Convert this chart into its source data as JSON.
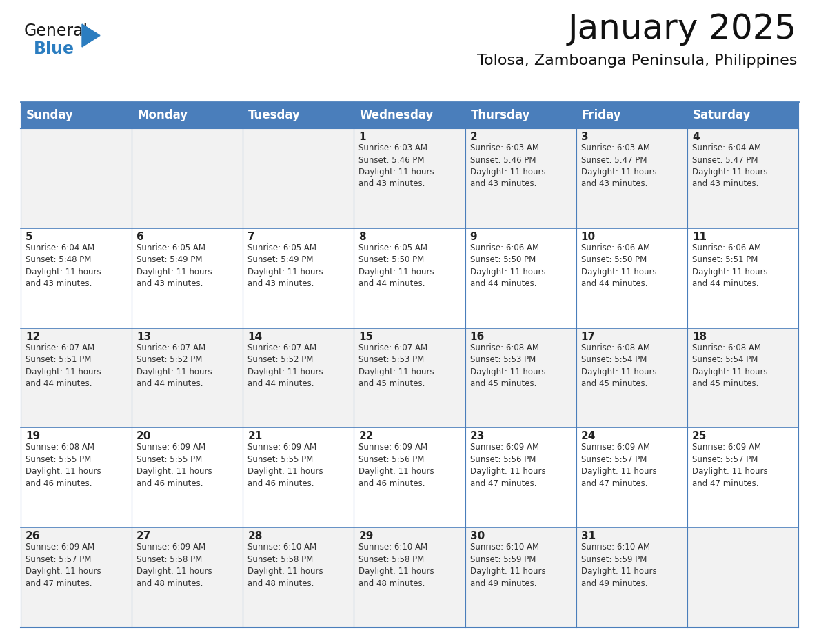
{
  "title": "January 2025",
  "subtitle": "Tolosa, Zamboanga Peninsula, Philippines",
  "header_color": "#4a7ebb",
  "header_text_color": "#ffffff",
  "cell_bg_even": "#f2f2f2",
  "cell_bg_odd": "#ffffff",
  "border_color": "#4a7ebb",
  "text_color": "#333333",
  "day_num_color": "#222222",
  "days_of_week": [
    "Sunday",
    "Monday",
    "Tuesday",
    "Wednesday",
    "Thursday",
    "Friday",
    "Saturday"
  ],
  "calendar_data": [
    [
      "",
      "",
      "",
      "1\nSunrise: 6:03 AM\nSunset: 5:46 PM\nDaylight: 11 hours\nand 43 minutes.",
      "2\nSunrise: 6:03 AM\nSunset: 5:46 PM\nDaylight: 11 hours\nand 43 minutes.",
      "3\nSunrise: 6:03 AM\nSunset: 5:47 PM\nDaylight: 11 hours\nand 43 minutes.",
      "4\nSunrise: 6:04 AM\nSunset: 5:47 PM\nDaylight: 11 hours\nand 43 minutes."
    ],
    [
      "5\nSunrise: 6:04 AM\nSunset: 5:48 PM\nDaylight: 11 hours\nand 43 minutes.",
      "6\nSunrise: 6:05 AM\nSunset: 5:49 PM\nDaylight: 11 hours\nand 43 minutes.",
      "7\nSunrise: 6:05 AM\nSunset: 5:49 PM\nDaylight: 11 hours\nand 43 minutes.",
      "8\nSunrise: 6:05 AM\nSunset: 5:50 PM\nDaylight: 11 hours\nand 44 minutes.",
      "9\nSunrise: 6:06 AM\nSunset: 5:50 PM\nDaylight: 11 hours\nand 44 minutes.",
      "10\nSunrise: 6:06 AM\nSunset: 5:50 PM\nDaylight: 11 hours\nand 44 minutes.",
      "11\nSunrise: 6:06 AM\nSunset: 5:51 PM\nDaylight: 11 hours\nand 44 minutes."
    ],
    [
      "12\nSunrise: 6:07 AM\nSunset: 5:51 PM\nDaylight: 11 hours\nand 44 minutes.",
      "13\nSunrise: 6:07 AM\nSunset: 5:52 PM\nDaylight: 11 hours\nand 44 minutes.",
      "14\nSunrise: 6:07 AM\nSunset: 5:52 PM\nDaylight: 11 hours\nand 44 minutes.",
      "15\nSunrise: 6:07 AM\nSunset: 5:53 PM\nDaylight: 11 hours\nand 45 minutes.",
      "16\nSunrise: 6:08 AM\nSunset: 5:53 PM\nDaylight: 11 hours\nand 45 minutes.",
      "17\nSunrise: 6:08 AM\nSunset: 5:54 PM\nDaylight: 11 hours\nand 45 minutes.",
      "18\nSunrise: 6:08 AM\nSunset: 5:54 PM\nDaylight: 11 hours\nand 45 minutes."
    ],
    [
      "19\nSunrise: 6:08 AM\nSunset: 5:55 PM\nDaylight: 11 hours\nand 46 minutes.",
      "20\nSunrise: 6:09 AM\nSunset: 5:55 PM\nDaylight: 11 hours\nand 46 minutes.",
      "21\nSunrise: 6:09 AM\nSunset: 5:55 PM\nDaylight: 11 hours\nand 46 minutes.",
      "22\nSunrise: 6:09 AM\nSunset: 5:56 PM\nDaylight: 11 hours\nand 46 minutes.",
      "23\nSunrise: 6:09 AM\nSunset: 5:56 PM\nDaylight: 11 hours\nand 47 minutes.",
      "24\nSunrise: 6:09 AM\nSunset: 5:57 PM\nDaylight: 11 hours\nand 47 minutes.",
      "25\nSunrise: 6:09 AM\nSunset: 5:57 PM\nDaylight: 11 hours\nand 47 minutes."
    ],
    [
      "26\nSunrise: 6:09 AM\nSunset: 5:57 PM\nDaylight: 11 hours\nand 47 minutes.",
      "27\nSunrise: 6:09 AM\nSunset: 5:58 PM\nDaylight: 11 hours\nand 48 minutes.",
      "28\nSunrise: 6:10 AM\nSunset: 5:58 PM\nDaylight: 11 hours\nand 48 minutes.",
      "29\nSunrise: 6:10 AM\nSunset: 5:58 PM\nDaylight: 11 hours\nand 48 minutes.",
      "30\nSunrise: 6:10 AM\nSunset: 5:59 PM\nDaylight: 11 hours\nand 49 minutes.",
      "31\nSunrise: 6:10 AM\nSunset: 5:59 PM\nDaylight: 11 hours\nand 49 minutes.",
      ""
    ]
  ],
  "logo_color_general": "#1a1a1a",
  "logo_color_blue": "#2b7dc0",
  "logo_triangle_color": "#2b7dc0",
  "title_fontsize": 36,
  "subtitle_fontsize": 16,
  "header_fontsize": 12,
  "daynum_fontsize": 11,
  "cell_fontsize": 8.5
}
